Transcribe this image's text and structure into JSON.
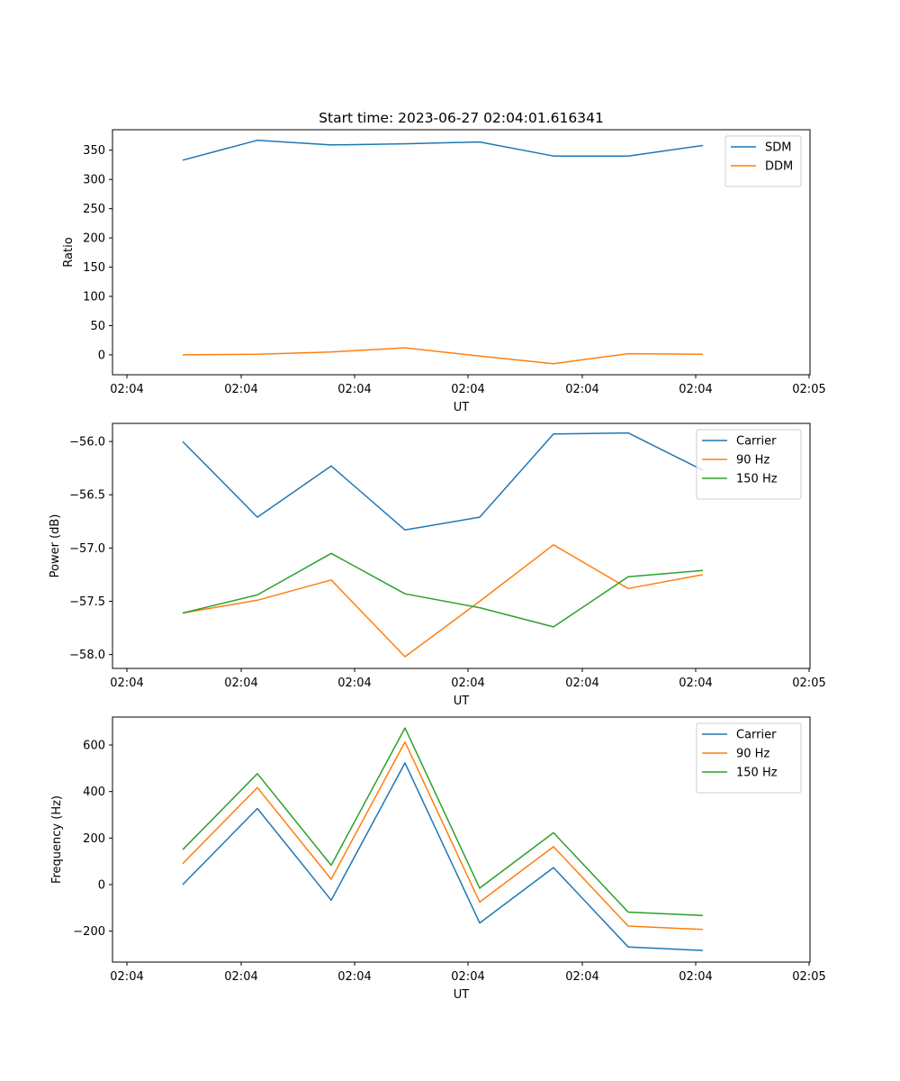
{
  "figure": {
    "title": "Start time: 2023-06-27 02:04:01.616341"
  },
  "chart_data": [
    {
      "type": "line",
      "ylabel": "Ratio",
      "xlabel": "UT",
      "ylim": [
        -34,
        385
      ],
      "yticks": [
        0,
        50,
        100,
        150,
        200,
        250,
        300,
        350
      ],
      "xticks": [
        "02:04",
        "02:04",
        "02:04",
        "02:04",
        "02:04",
        "02:04",
        "02:05"
      ],
      "legend_position": "top-right",
      "grid": false,
      "series": [
        {
          "name": "SDM",
          "color": "#1f77b4",
          "values": [
            333,
            367,
            359,
            361,
            364,
            340,
            340,
            358
          ]
        },
        {
          "name": "DDM",
          "color": "#ff7f0e",
          "values": [
            0,
            1,
            5,
            12,
            -2,
            -15,
            2,
            1
          ]
        }
      ]
    },
    {
      "type": "line",
      "ylabel": "Power (dB)",
      "xlabel": "UT",
      "ylim": [
        -58.13,
        -55.83
      ],
      "yticks": [
        -56.0,
        -56.5,
        -57.0,
        -57.5,
        -58.0
      ],
      "xticks": [
        "02:04",
        "02:04",
        "02:04",
        "02:04",
        "02:04",
        "02:04",
        "02:05"
      ],
      "legend_position": "top-right",
      "grid": false,
      "series": [
        {
          "name": "Carrier",
          "color": "#1f77b4",
          "values": [
            -56.0,
            -56.71,
            -56.23,
            -56.83,
            -56.71,
            -55.93,
            -55.92,
            -56.27
          ]
        },
        {
          "name": "90 Hz",
          "color": "#ff7f0e",
          "values": [
            -57.61,
            -57.49,
            -57.3,
            -58.02,
            -57.5,
            -56.97,
            -57.38,
            -57.25
          ]
        },
        {
          "name": "150 Hz",
          "color": "#2ca02c",
          "values": [
            -57.61,
            -57.44,
            -57.05,
            -57.43,
            -57.56,
            -57.74,
            -57.27,
            -57.21
          ]
        }
      ]
    },
    {
      "type": "line",
      "ylabel": "Frequency (Hz)",
      "xlabel": "UT",
      "ylim": [
        -333,
        720
      ],
      "yticks": [
        -200,
        0,
        200,
        400,
        600
      ],
      "xticks": [
        "02:04",
        "02:04",
        "02:04",
        "02:04",
        "02:04",
        "02:04",
        "02:05"
      ],
      "legend_position": "top-right",
      "grid": false,
      "series": [
        {
          "name": "Carrier",
          "color": "#1f77b4",
          "values": [
            0,
            327,
            -67,
            523,
            -165,
            73,
            -268,
            -283
          ]
        },
        {
          "name": "90 Hz",
          "color": "#ff7f0e",
          "values": [
            90,
            417,
            23,
            613,
            -75,
            163,
            -178,
            -193
          ]
        },
        {
          "name": "150 Hz",
          "color": "#2ca02c",
          "values": [
            150,
            477,
            83,
            673,
            -15,
            223,
            -118,
            -133
          ]
        }
      ]
    }
  ]
}
